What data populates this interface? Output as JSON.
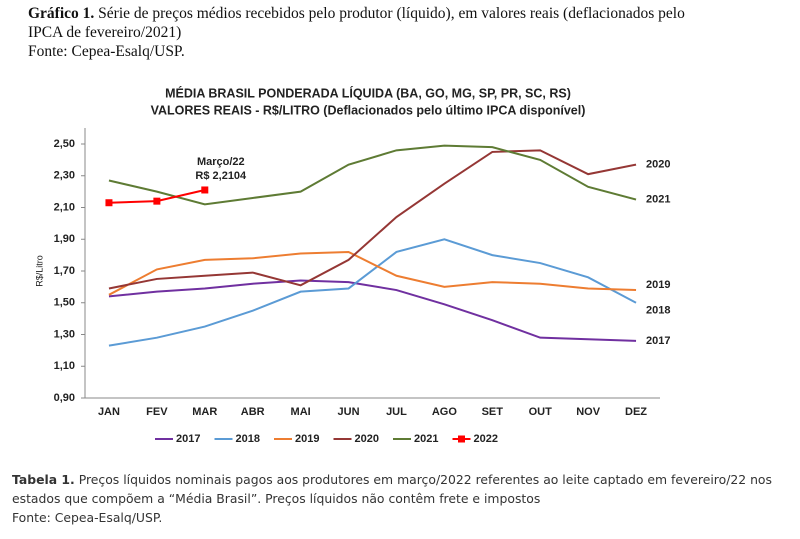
{
  "header": {
    "label": "Gráfico 1.",
    "text": "Série de preços médios recebidos pelo produtor (líquido), em valores reais (deflacionados pelo IPCA de fevereiro/2021)",
    "source": "Fonte: Cepea-Esalq/USP."
  },
  "chart_data": {
    "type": "line",
    "title": "MÉDIA BRASIL PONDERADA LÍQUIDA (BA, GO, MG, SP, PR, SC, RS)",
    "subtitle": "VALORES REAIS - R$/LITRO (Deflacionados pelo último IPCA disponível)",
    "y_label": "R$/Litro",
    "categories": [
      "JAN",
      "FEV",
      "MAR",
      "ABR",
      "MAI",
      "JUN",
      "JUL",
      "AGO",
      "SET",
      "OUT",
      "NOV",
      "DEZ"
    ],
    "ylim": [
      0.9,
      2.5
    ],
    "yticks": [
      {
        "value": 0.9,
        "label": "0,90"
      },
      {
        "value": 1.1,
        "label": "1,10"
      },
      {
        "value": 1.3,
        "label": "1,30"
      },
      {
        "value": 1.5,
        "label": "1,50"
      },
      {
        "value": 1.7,
        "label": "1,70"
      },
      {
        "value": 1.9,
        "label": "1,90"
      },
      {
        "value": 2.1,
        "label": "2,10"
      },
      {
        "value": 2.3,
        "label": "2,30"
      },
      {
        "value": 2.5,
        "label": "2,50"
      }
    ],
    "grid": false,
    "series": [
      {
        "name": "2017",
        "color": "#7030a0",
        "values": [
          1.54,
          1.57,
          1.59,
          1.62,
          1.64,
          1.63,
          1.58,
          1.49,
          1.39,
          1.28,
          1.27,
          1.26
        ]
      },
      {
        "name": "2018",
        "color": "#5b9bd5",
        "values": [
          1.23,
          1.28,
          1.35,
          1.45,
          1.57,
          1.59,
          1.82,
          1.9,
          1.8,
          1.75,
          1.66,
          1.5
        ]
      },
      {
        "name": "2019",
        "color": "#ed7d31",
        "values": [
          1.55,
          1.71,
          1.77,
          1.78,
          1.81,
          1.82,
          1.67,
          1.6,
          1.63,
          1.62,
          1.59,
          1.58
        ]
      },
      {
        "name": "2020",
        "color": "#953735",
        "values": [
          1.59,
          1.65,
          1.67,
          1.69,
          1.61,
          1.77,
          2.04,
          2.25,
          2.45,
          2.46,
          2.31,
          2.37
        ]
      },
      {
        "name": "2021",
        "color": "#5e7b34",
        "values": [
          2.27,
          2.2,
          2.12,
          2.16,
          2.2,
          2.37,
          2.46,
          2.49,
          2.48,
          2.4,
          2.23,
          2.15
        ]
      },
      {
        "name": "2022",
        "color": "#ff0000",
        "markers": true,
        "values": [
          2.13,
          2.14,
          2.2104,
          null,
          null,
          null,
          null,
          null,
          null,
          null,
          null,
          null
        ]
      }
    ],
    "annotation": {
      "lines": [
        "Março/22",
        "R$ 2,2104"
      ],
      "color": "#ff0000"
    },
    "end_labels": true,
    "legend": "bottom"
  },
  "footer": {
    "label": "Tabela 1.",
    "text": "Preços líquidos nominais pagos aos produtores em março/2022 referentes ao leite captado em fevereiro/22 nos estados que compõem a “Média Brasil”. Preços líquidos não contêm frete e impostos",
    "source": "Fonte: Cepea-Esalq/USP."
  }
}
